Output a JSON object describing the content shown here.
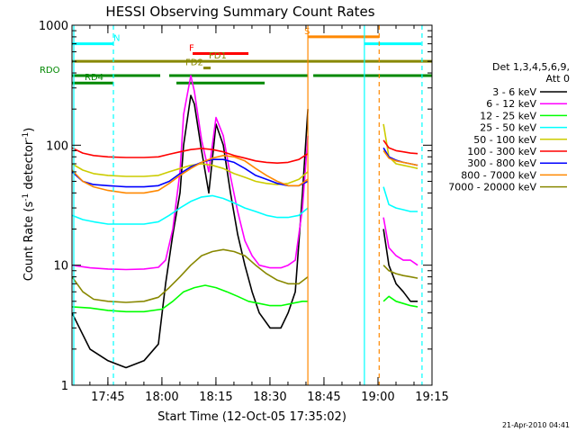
{
  "chart_data": {
    "type": "line",
    "title": "HESSI Observing Summary Count Rates",
    "xlabel": "Start Time (12-Oct-05 17:35:02)",
    "ylabel": "Count Rate (s⁻¹ detector⁻¹)",
    "ylabel_parts": {
      "prefix": "Count Rate (s",
      "exp1": "-1",
      "mid": " detector",
      "exp2": "-1",
      "suffix": ")"
    },
    "y_scale": "log",
    "ylim": [
      1,
      1000
    ],
    "xlim": [
      "17:35:02",
      "19:15:00"
    ],
    "x_minutes_range": [
      0,
      99.97
    ],
    "x_ticks": [
      {
        "label": "17:45",
        "minutes": 9.97
      },
      {
        "label": "18:00",
        "minutes": 24.97
      },
      {
        "label": "18:15",
        "minutes": 39.97
      },
      {
        "label": "18:30",
        "minutes": 54.97
      },
      {
        "label": "18:45",
        "minutes": 69.97
      },
      {
        "label": "19:00",
        "minutes": 84.97
      },
      {
        "label": "19:15",
        "minutes": 99.97
      }
    ],
    "y_ticks": [
      {
        "label": "1",
        "value": 1
      },
      {
        "label": "10",
        "value": 10
      },
      {
        "label": "100",
        "value": 100
      },
      {
        "label": "1000",
        "value": 1000
      }
    ],
    "legend_header": [
      "Det 1,3,4,5,6,9,",
      "Att 0"
    ],
    "legend_placement": "right",
    "series": [
      {
        "name": "3 - 6 keV",
        "color": "#000000",
        "x": [
          0,
          5,
          10,
          15,
          20,
          24,
          26,
          28,
          30,
          31,
          33,
          34,
          36,
          38,
          40,
          42,
          44,
          46,
          48,
          50,
          52,
          55,
          58,
          60,
          62,
          64,
          65.5
        ],
        "y": [
          4,
          2,
          1.6,
          1.4,
          1.6,
          2.2,
          7,
          18,
          40,
          100,
          260,
          220,
          90,
          40,
          150,
          100,
          40,
          18,
          10,
          6,
          4,
          3,
          3,
          4,
          6,
          40,
          200
        ]
      },
      {
        "name": "3 - 6 keV segment 2",
        "color": "#000000",
        "x": [
          86.5,
          88,
          90,
          92,
          94,
          96
        ],
        "y": [
          20,
          10,
          7,
          6,
          5,
          5
        ]
      },
      {
        "name": "6 - 12 keV",
        "color": "#ff00ff",
        "x": [
          0,
          5,
          10,
          15,
          20,
          24,
          26,
          28,
          30,
          31,
          33,
          34,
          36,
          38,
          40,
          42,
          44,
          46,
          48,
          50,
          52,
          55,
          58,
          60,
          62,
          64,
          65.5
        ],
        "y": [
          10,
          9.5,
          9.3,
          9.2,
          9.3,
          9.6,
          11,
          20,
          60,
          180,
          380,
          280,
          110,
          60,
          170,
          120,
          55,
          28,
          16,
          12,
          10,
          9.5,
          9.5,
          10,
          11,
          30,
          120
        ]
      },
      {
        "name": "6 - 12 keV segment 2",
        "color": "#ff00ff",
        "x": [
          86.5,
          88,
          90,
          92,
          94,
          96
        ],
        "y": [
          25,
          14,
          12,
          11,
          11,
          10
        ]
      },
      {
        "name": "12 - 25 keV",
        "color": "#00ff00",
        "x": [
          0,
          5,
          10,
          15,
          20,
          25,
          28,
          31,
          34,
          37,
          40,
          43,
          46,
          49,
          52,
          55,
          58,
          61,
          64,
          65.5
        ],
        "y": [
          4.5,
          4.4,
          4.2,
          4.1,
          4.1,
          4.3,
          5,
          6,
          6.5,
          6.8,
          6.5,
          6,
          5.5,
          5,
          4.8,
          4.6,
          4.6,
          4.8,
          5,
          5
        ]
      },
      {
        "name": "12 - 25 keV segment 2",
        "color": "#00ff00",
        "x": [
          86.5,
          88,
          90,
          92,
          94,
          96
        ],
        "y": [
          5,
          5.5,
          5,
          4.8,
          4.6,
          4.5
        ]
      },
      {
        "name": "25 - 50 keV",
        "color": "#00ffff",
        "x": [
          0,
          3,
          6,
          10,
          15,
          20,
          24,
          27,
          30,
          33,
          36,
          39,
          42,
          45,
          48,
          51,
          54,
          57,
          60,
          63,
          65.5
        ],
        "y": [
          26,
          24,
          23,
          22,
          22,
          22,
          23,
          26,
          30,
          34,
          37,
          38,
          36,
          33,
          30,
          28,
          26,
          25,
          25,
          26,
          30
        ]
      },
      {
        "name": "25 - 50 keV segment 2",
        "color": "#00ffff",
        "x": [
          86.5,
          88,
          90,
          92,
          94,
          96
        ],
        "y": [
          45,
          32,
          30,
          29,
          28,
          28
        ]
      },
      {
        "name": "50 - 100 keV",
        "color": "#cccc00",
        "x": [
          0,
          3,
          6,
          10,
          15,
          20,
          24,
          27,
          30,
          33,
          36,
          39,
          42,
          45,
          48,
          51,
          54,
          57,
          60,
          63,
          65.5
        ],
        "y": [
          70,
          62,
          58,
          56,
          55,
          55,
          56,
          60,
          64,
          68,
          70,
          68,
          64,
          58,
          54,
          50,
          48,
          47,
          48,
          52,
          60
        ]
      },
      {
        "name": "50 - 100 keV segment 2",
        "color": "#cccc00",
        "x": [
          86.5,
          88,
          90,
          92,
          94,
          96
        ],
        "y": [
          150,
          80,
          70,
          68,
          66,
          64
        ]
      },
      {
        "name": "100 - 300 keV",
        "color": "#ff0000",
        "x": [
          0,
          3,
          6,
          10,
          15,
          20,
          24,
          27,
          30,
          33,
          36,
          39,
          42,
          45,
          48,
          51,
          54,
          57,
          60,
          63,
          65.5
        ],
        "y": [
          95,
          86,
          82,
          80,
          79,
          79,
          80,
          84,
          88,
          92,
          94,
          92,
          88,
          82,
          78,
          74,
          72,
          71,
          72,
          76,
          85
        ]
      },
      {
        "name": "100 - 300 keV segment 2",
        "color": "#ff0000",
        "x": [
          86.5,
          88,
          90,
          92,
          94,
          96
        ],
        "y": [
          110,
          95,
          90,
          88,
          86,
          85
        ]
      },
      {
        "name": "300 - 800 keV",
        "color": "#0000ff",
        "x": [
          0,
          3,
          6,
          10,
          15,
          20,
          24,
          27,
          30,
          33,
          36,
          39,
          42,
          45,
          48,
          51,
          54,
          57,
          60,
          63,
          65.5
        ],
        "y": [
          60,
          50,
          47,
          46,
          45,
          45,
          46,
          50,
          58,
          66,
          72,
          76,
          76,
          72,
          64,
          56,
          52,
          48,
          46,
          46,
          50
        ]
      },
      {
        "name": "300 - 800 keV segment 2",
        "color": "#0000ff",
        "x": [
          86.5,
          88,
          90,
          92,
          94,
          96
        ],
        "y": [
          95,
          80,
          75,
          72,
          70,
          68
        ]
      },
      {
        "name": "800 - 7000 keV",
        "color": "#ff8800",
        "x": [
          0,
          3,
          6,
          10,
          15,
          20,
          24,
          27,
          30,
          33,
          36,
          39,
          42,
          45,
          48,
          51,
          54,
          57,
          60,
          63,
          65.5
        ],
        "y": [
          62,
          50,
          45,
          42,
          40,
          40,
          42,
          48,
          56,
          64,
          72,
          78,
          82,
          80,
          74,
          64,
          56,
          50,
          46,
          46,
          52
        ]
      },
      {
        "name": "800 - 7000 keV segment 2",
        "color": "#ff8800",
        "x": [
          86.5,
          88,
          90,
          92,
          94,
          96
        ],
        "y": [
          90,
          78,
          74,
          72,
          70,
          68
        ]
      },
      {
        "name": "7000 - 20000 keV",
        "color": "#888800",
        "x": [
          0,
          3,
          6,
          10,
          15,
          20,
          24,
          27,
          30,
          33,
          36,
          39,
          42,
          45,
          48,
          51,
          54,
          57,
          60,
          63,
          65.5
        ],
        "y": [
          8,
          6,
          5.2,
          5,
          4.9,
          5,
          5.4,
          6.5,
          8,
          10,
          12,
          13,
          13.5,
          13,
          12,
          10,
          8.5,
          7.5,
          7,
          7,
          8
        ]
      },
      {
        "name": "7000 - 20000 keV segment 2",
        "color": "#888800",
        "x": [
          86.5,
          88,
          90,
          92,
          94,
          96
        ],
        "y": [
          10,
          9,
          8.5,
          8.2,
          8,
          7.8
        ]
      }
    ],
    "flag_bars": [
      {
        "label": "N",
        "color": "#00ffff",
        "y": 700,
        "segments": [
          [
            0,
            11.5
          ],
          [
            81.2,
            97
          ]
        ],
        "label_at": 11.5
      },
      {
        "label": "S",
        "color": "#ff8800",
        "y": 800,
        "segments": [
          [
            65.5,
            85.3
          ]
        ],
        "label_at": 64.5
      },
      {
        "label": "F",
        "color": "#ff0000",
        "y": 580,
        "segments": [
          [
            33.5,
            49
          ]
        ],
        "label_at": 32.5
      },
      {
        "label": "FD1",
        "color": "#888800",
        "y": 500,
        "segments": [
          [
            0,
            100
          ]
        ],
        "label_at": 38
      },
      {
        "label": "FD2",
        "color": "#888800",
        "y": 440,
        "segments": [
          [
            36.5,
            38.5
          ]
        ],
        "label_at": 31.5
      },
      {
        "label": "RDO",
        "color": "#008800",
        "y": 380,
        "segments": [
          [
            0,
            24.5
          ],
          [
            27,
            65.5
          ],
          [
            67,
            100
          ]
        ],
        "label_at": -9
      },
      {
        "label": "RD4",
        "color": "#008800",
        "y": 330,
        "segments": [
          [
            0,
            11.5
          ],
          [
            29,
            53.5
          ]
        ],
        "label_at": 3.5
      }
    ],
    "vertical_markers": [
      {
        "minutes": 0.5,
        "color": "#00ffff",
        "style": "solid"
      },
      {
        "minutes": 11.5,
        "color": "#00ffff",
        "style": "dashed"
      },
      {
        "minutes": 65.5,
        "color": "#ff8800",
        "style": "solid"
      },
      {
        "minutes": 81.2,
        "color": "#00ffff",
        "style": "solid"
      },
      {
        "minutes": 85.3,
        "color": "#ff8800",
        "style": "dashed"
      },
      {
        "minutes": 97.2,
        "color": "#00ffff",
        "style": "dashed"
      }
    ],
    "grid": false,
    "footer": "21-Apr-2010 04:41"
  }
}
